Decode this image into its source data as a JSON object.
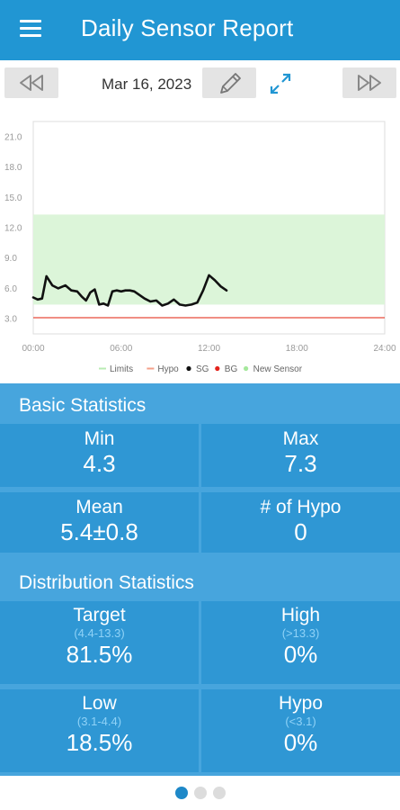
{
  "header": {
    "title": "Daily Sensor Report",
    "menu_icon": "hamburger-menu-icon"
  },
  "date_nav": {
    "date": "Mar 16, 2023",
    "prev_icon": "rewind-icon",
    "next_icon": "fast-forward-icon",
    "edit_icon": "pencil-icon",
    "expand_icon": "expand-icon"
  },
  "chart_data": {
    "type": "line",
    "x": [
      0.0,
      0.3,
      0.6,
      0.9,
      1.3,
      1.7,
      2.2,
      2.6,
      3.0,
      3.3,
      3.6,
      3.9,
      4.2,
      4.5,
      4.8,
      5.1,
      5.4,
      5.7,
      6.0,
      6.3,
      6.6,
      6.9,
      7.2,
      7.6,
      8.0,
      8.4,
      8.8,
      9.2,
      9.6,
      10.0,
      10.4,
      10.8,
      11.2,
      11.6,
      12.0,
      12.4,
      12.8,
      13.2
    ],
    "series": [
      {
        "name": "SG",
        "color": "#111111",
        "values": [
          5.1,
          4.9,
          5.0,
          7.2,
          6.3,
          6.0,
          6.3,
          5.8,
          5.7,
          5.2,
          4.8,
          5.6,
          5.9,
          4.4,
          4.5,
          4.3,
          5.7,
          5.8,
          5.7,
          5.8,
          5.8,
          5.7,
          5.4,
          5.0,
          4.7,
          4.8,
          4.3,
          4.5,
          4.9,
          4.4,
          4.3,
          4.4,
          4.6,
          5.8,
          7.3,
          6.8,
          6.2,
          5.8
        ]
      }
    ],
    "x_ticks": [
      "00:00",
      "06:00",
      "12:00",
      "18:00",
      "24:00"
    ],
    "y_ticks": [
      "3.0",
      "6.0",
      "9.0",
      "12.0",
      "15.0",
      "18.0",
      "21.0"
    ],
    "xlim": [
      0,
      24
    ],
    "ylim": [
      1.5,
      22.5
    ],
    "target_range": [
      4.4,
      13.3
    ],
    "hypo_line": 3.1,
    "target_color": "#dcf5d9",
    "hypo_color": "#e64a3b",
    "legend": [
      {
        "label": "Limits",
        "color": "#b9ebb3",
        "marker": "line"
      },
      {
        "label": "Hypo",
        "color": "#f4a08a",
        "marker": "line"
      },
      {
        "label": "SG",
        "color": "#111111",
        "marker": "dot"
      },
      {
        "label": "BG",
        "color": "#e3231c",
        "marker": "dot"
      },
      {
        "label": "New Sensor",
        "color": "#a5e89c",
        "marker": "dot"
      }
    ],
    "legend_position": "bottom"
  },
  "basic_stats": {
    "title": "Basic Statistics",
    "min": {
      "label": "Min",
      "value": "4.3"
    },
    "max": {
      "label": "Max",
      "value": "7.3"
    },
    "mean": {
      "label": "Mean",
      "value": "5.4±0.8"
    },
    "hypo_count": {
      "label": "# of Hypo",
      "value": "0"
    }
  },
  "distribution_stats": {
    "title": "Distribution Statistics",
    "target": {
      "label": "Target",
      "range": "(4.4-13.3)",
      "value": "81.5%"
    },
    "high": {
      "label": "High",
      "range": "(>13.3)",
      "value": "0%"
    },
    "low": {
      "label": "Low",
      "range": "(3.1-4.4)",
      "value": "18.5%"
    },
    "hypo": {
      "label": "Hypo",
      "range": "(<3.1)",
      "value": "0%"
    }
  },
  "pager": {
    "active": 0,
    "count": 3,
    "active_color": "#1e88c8"
  }
}
